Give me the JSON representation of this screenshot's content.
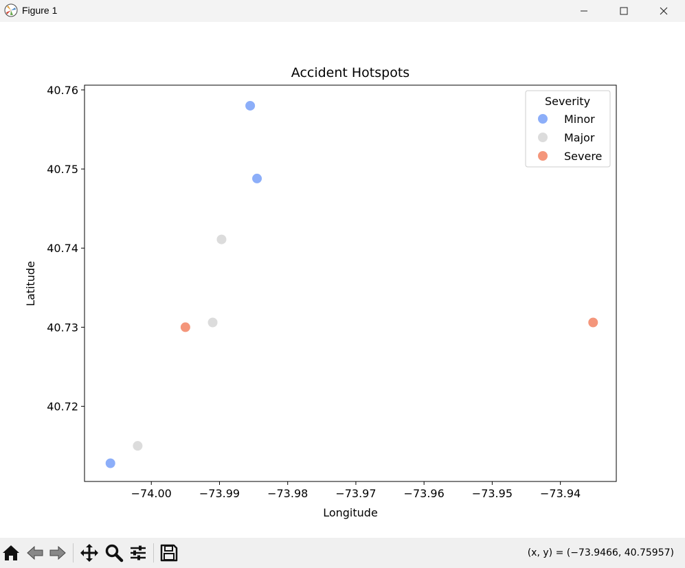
{
  "window": {
    "title": "Figure 1",
    "app_icon": "matplotlib-icon",
    "controls": [
      "minimize-icon",
      "maximize-icon",
      "close-icon"
    ]
  },
  "chart_data": {
    "type": "scatter",
    "title": "Accident Hotspots",
    "xlabel": "Longitude",
    "ylabel": "Latitude",
    "xlim": [
      -74.0098,
      -73.9318
    ],
    "ylim": [
      40.7105,
      40.7606
    ],
    "xticks": [
      -74.0,
      -73.99,
      -73.98,
      -73.97,
      -73.96,
      -73.95,
      -73.94
    ],
    "xtick_labels": [
      "−74.00",
      "−73.99",
      "−73.98",
      "−73.97",
      "−73.96",
      "−73.95",
      "−73.94"
    ],
    "yticks": [
      40.72,
      40.73,
      40.74,
      40.75,
      40.76
    ],
    "ytick_labels": [
      "40.72",
      "40.73",
      "40.74",
      "40.75",
      "40.76"
    ],
    "grid": false,
    "legend": {
      "title": "Severity",
      "placement": "top-right",
      "entries": [
        {
          "name": "Minor",
          "color": "#8caef9"
        },
        {
          "name": "Major",
          "color": "#dcdcdc"
        },
        {
          "name": "Severe",
          "color": "#f4967b"
        }
      ]
    },
    "series": [
      {
        "name": "Minor",
        "color": "#8caef9",
        "points": [
          {
            "x": -73.9855,
            "y": 40.758
          },
          {
            "x": -73.9845,
            "y": 40.7488
          },
          {
            "x": -74.006,
            "y": 40.7128
          }
        ]
      },
      {
        "name": "Major",
        "color": "#dcdcdc",
        "points": [
          {
            "x": -73.9897,
            "y": 40.7411
          },
          {
            "x": -73.991,
            "y": 40.7306
          },
          {
            "x": -74.002,
            "y": 40.715
          }
        ]
      },
      {
        "name": "Severe",
        "color": "#f4967b",
        "points": [
          {
            "x": -73.995,
            "y": 40.73
          },
          {
            "x": -73.9352,
            "y": 40.7306
          }
        ]
      }
    ]
  },
  "toolbar": {
    "buttons": [
      "home-icon",
      "back-icon",
      "forward-icon",
      "pan-icon",
      "zoom-icon",
      "configure-subplots-icon",
      "save-icon"
    ],
    "coords_text": "(x, y) = (−73.9466, 40.75957)"
  }
}
